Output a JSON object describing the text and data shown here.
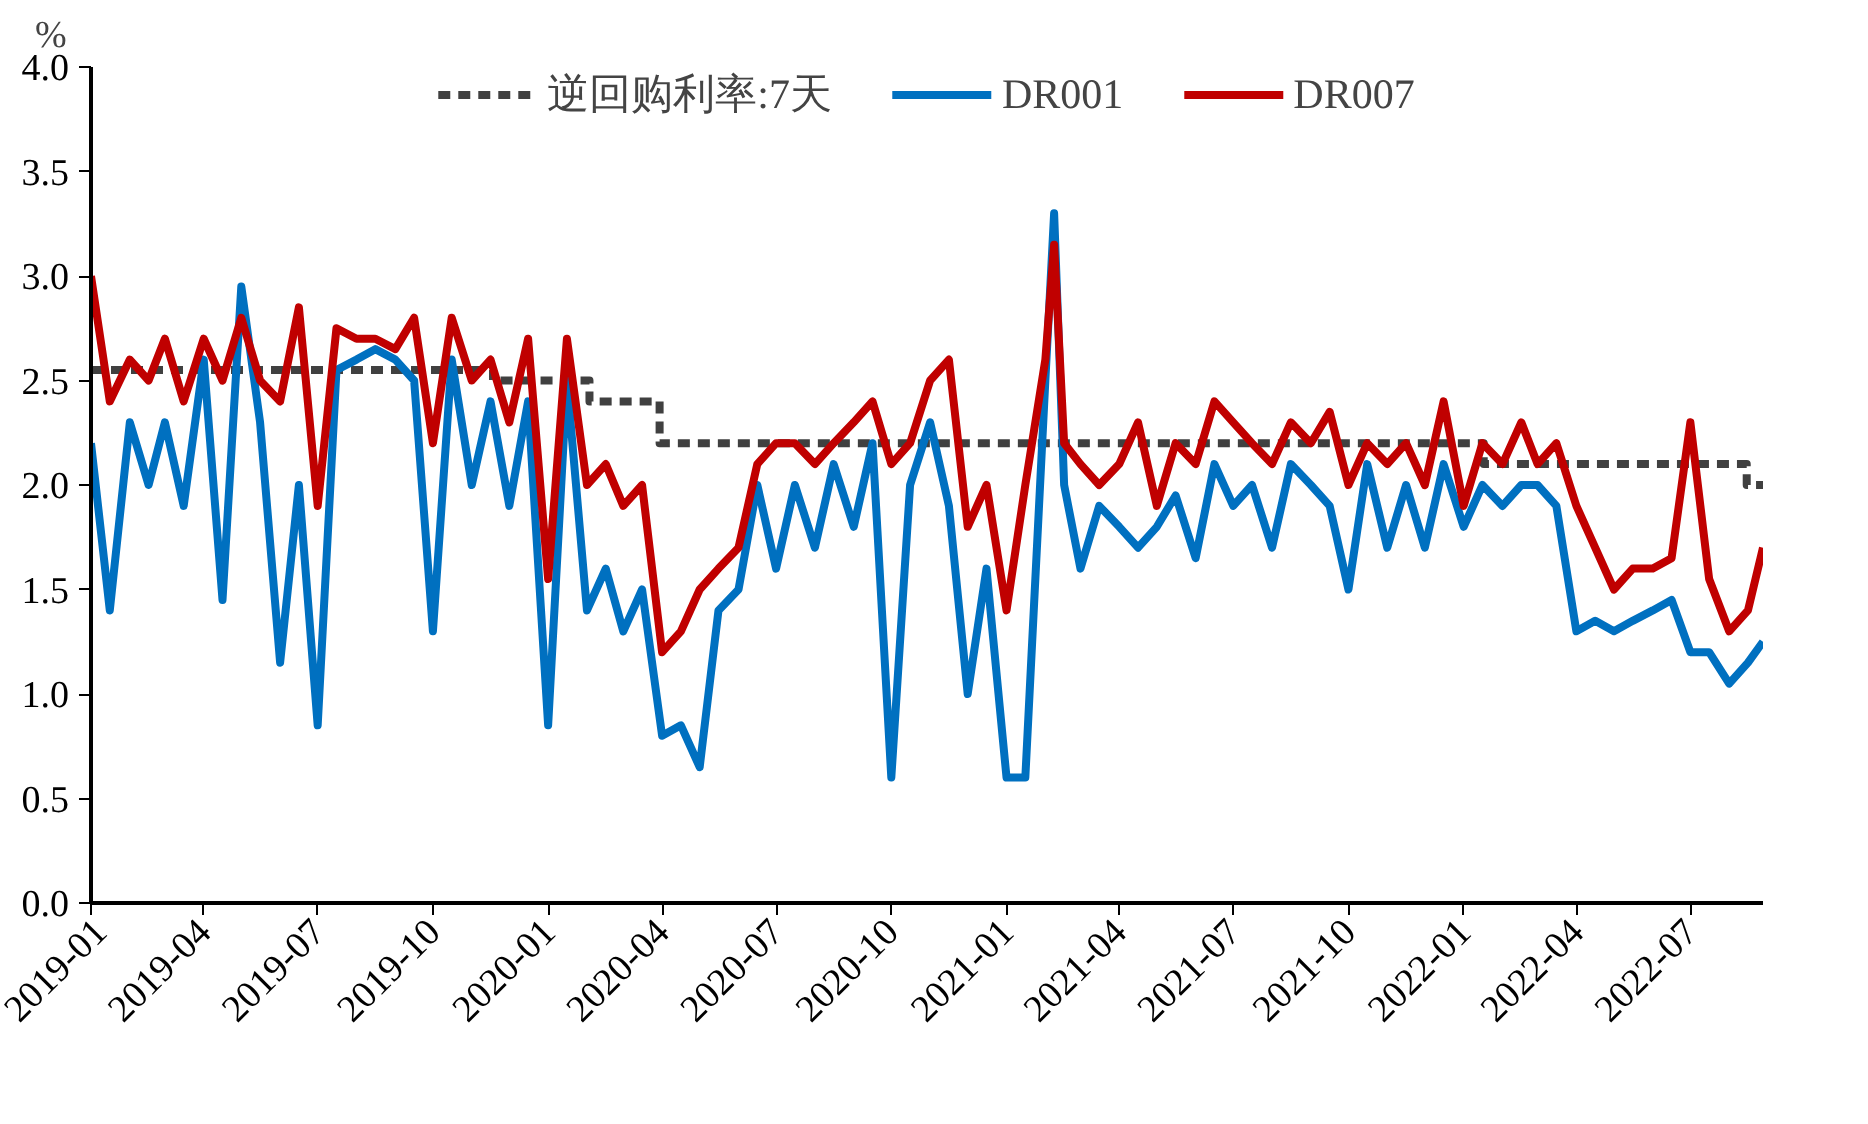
{
  "chart_data": {
    "type": "line",
    "ylabel": "%",
    "legend": "top",
    "grid": false,
    "marker": "none",
    "xlim": [
      "2019-01-01",
      "2022-08-28"
    ],
    "ylim": [
      0,
      4
    ],
    "yticks": [
      {
        "value": 0,
        "label": "0.0"
      },
      {
        "value": 0.5,
        "label": "0.5"
      },
      {
        "value": 1,
        "label": "1.0"
      },
      {
        "value": 1.5,
        "label": "1.5"
      },
      {
        "value": 2,
        "label": "2.0"
      },
      {
        "value": 2.5,
        "label": "2.5"
      },
      {
        "value": 3,
        "label": "3.0"
      },
      {
        "value": 3.5,
        "label": "3.5"
      },
      {
        "value": 4,
        "label": "4.0"
      }
    ],
    "xticks": [
      "2019-01",
      "2019-04",
      "2019-07",
      "2019-10",
      "2020-01",
      "2020-04",
      "2020-07",
      "2020-10",
      "2021-01",
      "2021-04",
      "2021-07",
      "2021-10",
      "2022-01",
      "2022-04",
      "2022-07"
    ],
    "series": [
      {
        "name": "逆回购利率:7天",
        "type": "step",
        "line_style": "dashed",
        "color": "#404040",
        "x": [
          "2019-01-01",
          "2019-11-18",
          "2020-02-03",
          "2020-03-30",
          "2022-01-17",
          "2022-08-15",
          "2022-08-28"
        ],
        "values": [
          2.55,
          2.5,
          2.4,
          2.2,
          2.1,
          2.0,
          2.0
        ]
      },
      {
        "name": "DR001",
        "line_style": "solid",
        "color": "#0070c0",
        "x": [
          "2019-01-01",
          "2019-01-16",
          "2019-02-01",
          "2019-02-16",
          "2019-03-01",
          "2019-03-16",
          "2019-04-01",
          "2019-04-16",
          "2019-05-01",
          "2019-05-16",
          "2019-06-01",
          "2019-06-16",
          "2019-07-01",
          "2019-07-16",
          "2019-08-01",
          "2019-08-16",
          "2019-09-01",
          "2019-09-16",
          "2019-10-01",
          "2019-10-16",
          "2019-11-01",
          "2019-11-16",
          "2019-12-01",
          "2019-12-16",
          "2020-01-01",
          "2020-01-16",
          "2020-02-01",
          "2020-02-16",
          "2020-03-01",
          "2020-03-16",
          "2020-04-01",
          "2020-04-16",
          "2020-05-01",
          "2020-05-16",
          "2020-06-01",
          "2020-06-16",
          "2020-07-01",
          "2020-07-16",
          "2020-08-01",
          "2020-08-16",
          "2020-09-01",
          "2020-09-16",
          "2020-10-01",
          "2020-10-16",
          "2020-11-01",
          "2020-11-16",
          "2020-12-01",
          "2020-12-16",
          "2021-01-01",
          "2021-01-16",
          "2021-02-01",
          "2021-02-08",
          "2021-02-16",
          "2021-03-01",
          "2021-03-16",
          "2021-04-01",
          "2021-04-16",
          "2021-05-01",
          "2021-05-16",
          "2021-06-01",
          "2021-06-16",
          "2021-07-01",
          "2021-07-16",
          "2021-08-01",
          "2021-08-16",
          "2021-09-01",
          "2021-09-16",
          "2021-10-01",
          "2021-10-16",
          "2021-11-01",
          "2021-11-16",
          "2021-12-01",
          "2021-12-16",
          "2022-01-01",
          "2022-01-16",
          "2022-02-01",
          "2022-02-16",
          "2022-03-01",
          "2022-03-16",
          "2022-04-01",
          "2022-04-16",
          "2022-05-01",
          "2022-05-16",
          "2022-06-01",
          "2022-06-16",
          "2022-07-01",
          "2022-07-16",
          "2022-08-01",
          "2022-08-16",
          "2022-08-28"
        ],
        "values": [
          2.2,
          1.4,
          2.3,
          2.0,
          2.3,
          1.9,
          2.6,
          1.45,
          2.95,
          2.3,
          1.15,
          2.0,
          0.85,
          2.55,
          2.6,
          2.65,
          2.6,
          2.5,
          1.3,
          2.6,
          2.0,
          2.4,
          1.9,
          2.4,
          0.85,
          2.5,
          1.4,
          1.6,
          1.3,
          1.5,
          0.8,
          0.85,
          0.65,
          1.4,
          1.5,
          2.0,
          1.6,
          2.0,
          1.7,
          2.1,
          1.8,
          2.2,
          0.6,
          2.0,
          2.3,
          1.9,
          1.0,
          1.6,
          0.6,
          0.6,
          2.5,
          3.3,
          2.0,
          1.6,
          1.9,
          1.8,
          1.7,
          1.8,
          1.95,
          1.65,
          2.1,
          1.9,
          2.0,
          1.7,
          2.1,
          2.0,
          1.9,
          1.5,
          2.1,
          1.7,
          2.0,
          1.7,
          2.1,
          1.8,
          2.0,
          1.9,
          2.0,
          2.0,
          1.9,
          1.3,
          1.35,
          1.3,
          1.35,
          1.4,
          1.45,
          1.2,
          1.2,
          1.05,
          1.15,
          1.25
        ]
      },
      {
        "name": "DR007",
        "line_style": "solid",
        "color": "#c00000",
        "x": [
          "2019-01-01",
          "2019-01-16",
          "2019-02-01",
          "2019-02-16",
          "2019-03-01",
          "2019-03-16",
          "2019-04-01",
          "2019-04-16",
          "2019-05-01",
          "2019-05-16",
          "2019-06-01",
          "2019-06-16",
          "2019-07-01",
          "2019-07-16",
          "2019-08-01",
          "2019-08-16",
          "2019-09-01",
          "2019-09-16",
          "2019-10-01",
          "2019-10-16",
          "2019-11-01",
          "2019-11-16",
          "2019-12-01",
          "2019-12-16",
          "2020-01-01",
          "2020-01-16",
          "2020-02-01",
          "2020-02-16",
          "2020-03-01",
          "2020-03-16",
          "2020-04-01",
          "2020-04-16",
          "2020-05-01",
          "2020-05-16",
          "2020-06-01",
          "2020-06-16",
          "2020-07-01",
          "2020-07-16",
          "2020-08-01",
          "2020-08-16",
          "2020-09-01",
          "2020-09-16",
          "2020-10-01",
          "2020-10-16",
          "2020-11-01",
          "2020-11-16",
          "2020-12-01",
          "2020-12-16",
          "2021-01-01",
          "2021-01-16",
          "2021-02-01",
          "2021-02-08",
          "2021-02-16",
          "2021-03-01",
          "2021-03-16",
          "2021-04-01",
          "2021-04-16",
          "2021-05-01",
          "2021-05-16",
          "2021-06-01",
          "2021-06-16",
          "2021-07-01",
          "2021-07-16",
          "2021-08-01",
          "2021-08-16",
          "2021-09-01",
          "2021-09-16",
          "2021-10-01",
          "2021-10-16",
          "2021-11-01",
          "2021-11-16",
          "2021-12-01",
          "2021-12-16",
          "2022-01-01",
          "2022-01-16",
          "2022-02-01",
          "2022-02-16",
          "2022-03-01",
          "2022-03-16",
          "2022-04-01",
          "2022-04-16",
          "2022-05-01",
          "2022-05-16",
          "2022-06-01",
          "2022-06-16",
          "2022-07-01",
          "2022-07-16",
          "2022-08-01",
          "2022-08-16",
          "2022-08-28"
        ],
        "values": [
          3.0,
          2.4,
          2.6,
          2.5,
          2.7,
          2.4,
          2.7,
          2.5,
          2.8,
          2.5,
          2.4,
          2.85,
          1.9,
          2.75,
          2.7,
          2.7,
          2.65,
          2.8,
          2.2,
          2.8,
          2.5,
          2.6,
          2.3,
          2.7,
          1.55,
          2.7,
          2.0,
          2.1,
          1.9,
          2.0,
          1.2,
          1.3,
          1.5,
          1.6,
          1.7,
          2.1,
          2.2,
          2.2,
          2.1,
          2.2,
          2.3,
          2.4,
          2.1,
          2.2,
          2.5,
          2.6,
          1.8,
          2.0,
          1.4,
          2.0,
          2.6,
          3.15,
          2.2,
          2.1,
          2.0,
          2.1,
          2.3,
          1.9,
          2.2,
          2.1,
          2.4,
          2.3,
          2.2,
          2.1,
          2.3,
          2.2,
          2.35,
          2.0,
          2.2,
          2.1,
          2.2,
          2.0,
          2.4,
          1.9,
          2.2,
          2.1,
          2.3,
          2.1,
          2.2,
          1.9,
          1.7,
          1.5,
          1.6,
          1.6,
          1.65,
          2.3,
          1.55,
          1.3,
          1.4,
          1.7
        ]
      }
    ]
  }
}
